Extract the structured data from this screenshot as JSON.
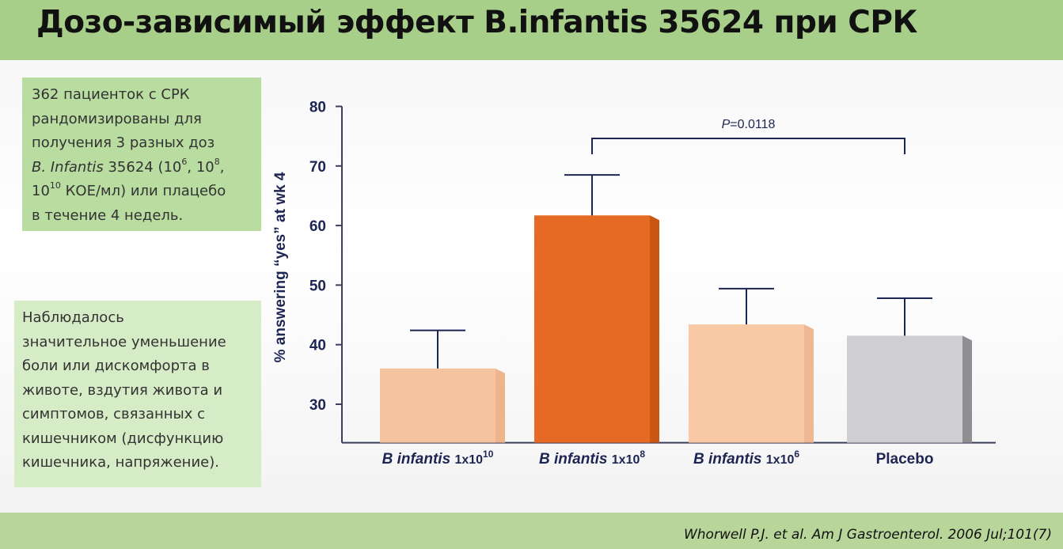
{
  "slide": {
    "title": "Дозо-зависимый эффект B.infantis 35624 при СРК",
    "box1": {
      "line1": "362 пациенток с СРК",
      "line2": "рандомизированы для",
      "line3": "получения 3 разных доз",
      "line4_italic": "B. Infantis",
      "line4_text": "35624 (10",
      "line4_sup1": "6",
      "line4_mid": ", 10",
      "line4_sup2": "8",
      "line4_end": ",",
      "line5_base": "10",
      "line5_sup": "10",
      "line5_text": " КОЕ/мл) или плацебо",
      "line6": "в течение 4 недель."
    },
    "box2": {
      "lines": [
        "Наблюдалось",
        "значительное уменьшение",
        "боли или дискомфорта в",
        "животе, вздутия живота и",
        "симптомов, связанных с",
        "кишечником (дисфункцию",
        "кишечника, напряжение)."
      ]
    },
    "citation": "Whorwell P.J. et al. Am J Gastroenterol. 2006 Jul;101(7)"
  },
  "chart_data": {
    "type": "bar",
    "categories": [
      {
        "italic": "B infantis",
        "base": "1x10",
        "exp": "10"
      },
      {
        "italic": "B infantis",
        "base": "1x10",
        "exp": "8"
      },
      {
        "italic": "B infantis",
        "base": "1x10",
        "exp": "6"
      },
      {
        "italic": "",
        "base": "Placebo",
        "exp": ""
      }
    ],
    "values": [
      36,
      61.7,
      43.4,
      41.5
    ],
    "error_upper": [
      42.4,
      68.5,
      49.4,
      47.8
    ],
    "colors": [
      "#f5c3a0",
      "#e66a23",
      "#f8c9a4",
      "#cfcfd1"
    ],
    "side_colors": [
      "#eeb48c",
      "#c95613",
      "#eeb992",
      "#8f8f93"
    ],
    "ylabel": "% answering “yes” at wk 4",
    "yticks": [
      30,
      40,
      50,
      60,
      70,
      80
    ],
    "ylim": [
      25,
      80
    ],
    "annotation": {
      "text": "P=0.0118",
      "from": 1,
      "to": 3
    }
  }
}
